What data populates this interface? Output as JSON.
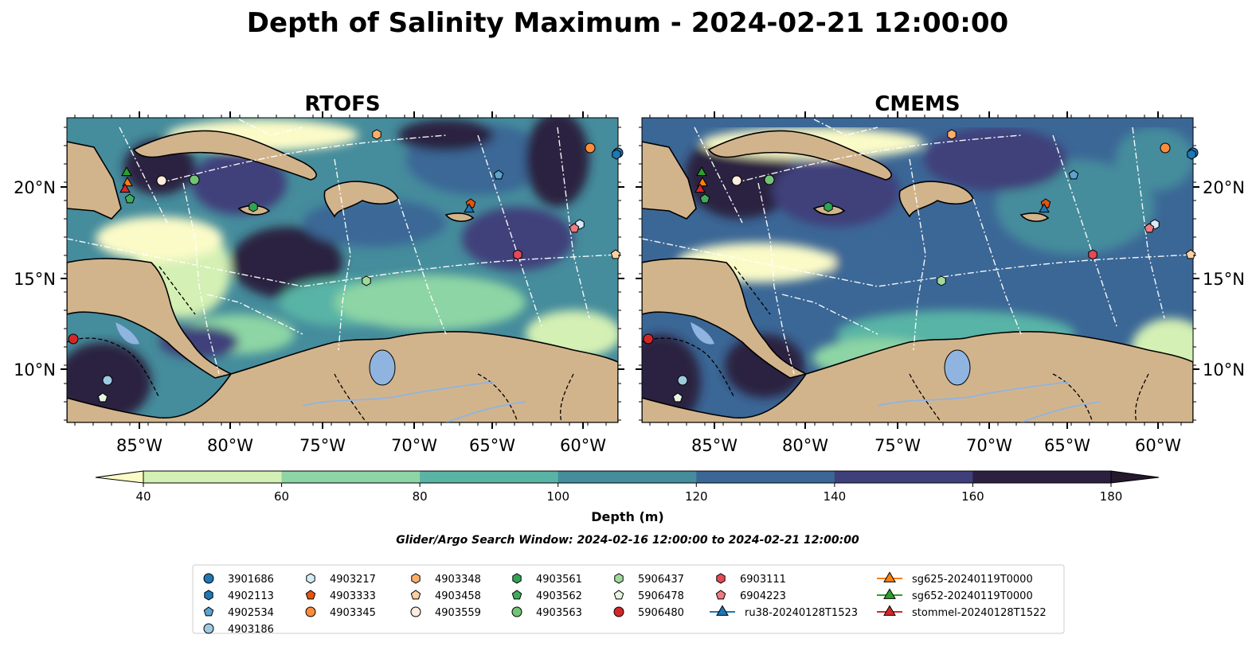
{
  "title": "Depth of Salinity Maximum - 2024-02-21 12:00:00",
  "panels": [
    {
      "id": "rtofs",
      "title": "RTOFS"
    },
    {
      "id": "cmems",
      "title": "CMEMS"
    }
  ],
  "lon_ticks": [
    "85°W",
    "80°W",
    "75°W",
    "70°W",
    "65°W",
    "60°W"
  ],
  "lat_ticks": [
    "20°N",
    "15°N",
    "10°N"
  ],
  "colorbar": {
    "label": "Depth (m)",
    "ticks": [
      "40",
      "60",
      "80",
      "100",
      "120",
      "140",
      "160",
      "180"
    ],
    "colors": [
      "#d4f0b4",
      "#8dd5a4",
      "#59b4a6",
      "#458c9c",
      "#3b6796",
      "#3f3f7a",
      "#2b2040"
    ],
    "under_color": "#fbfbc8",
    "over_color": "#24182c"
  },
  "search_window": "Glider/Argo Search Window: 2024-02-16 12:00:00 to 2024-02-21 12:00:00",
  "colors": {
    "land": "#d2b48c",
    "lake": "#8fb4e0",
    "ocean_deep": "#2d2343"
  },
  "legend": [
    {
      "label": "3901686",
      "marker": "circle",
      "color": "#1f77b4"
    },
    {
      "label": "4902113",
      "marker": "hexagon",
      "color": "#1f77b4"
    },
    {
      "label": "4902534",
      "marker": "pentagon",
      "color": "#5ba3d0"
    },
    {
      "label": "4903186",
      "marker": "circle",
      "color": "#9ecae1"
    },
    {
      "label": "4903217",
      "marker": "hexagon",
      "color": "#d6eaf8"
    },
    {
      "label": "4903333",
      "marker": "pentagon",
      "color": "#e6550d"
    },
    {
      "label": "4903345",
      "marker": "circle",
      "color": "#fd8d3c"
    },
    {
      "label": "4903348",
      "marker": "hexagon",
      "color": "#fdae6b"
    },
    {
      "label": "4903458",
      "marker": "pentagon",
      "color": "#fdd0a2"
    },
    {
      "label": "4903559",
      "marker": "circle",
      "color": "#feedde"
    },
    {
      "label": "4903561",
      "marker": "hexagon",
      "color": "#31a354"
    },
    {
      "label": "4903562",
      "marker": "pentagon",
      "color": "#41ab5d"
    },
    {
      "label": "4903563",
      "marker": "circle",
      "color": "#74c476"
    },
    {
      "label": "5906437",
      "marker": "hexagon",
      "color": "#a1d99b"
    },
    {
      "label": "5906478",
      "marker": "pentagon",
      "color": "#e5f5e0"
    },
    {
      "label": "5906480",
      "marker": "circle",
      "color": "#d62728"
    },
    {
      "label": "6903111",
      "marker": "hexagon",
      "color": "#e34a54"
    },
    {
      "label": "6904223",
      "marker": "pentagon",
      "color": "#f07a80"
    },
    {
      "label": "ru38-20240128T1523",
      "marker": "triangle-line",
      "color": "#1f77b4"
    },
    {
      "label": "sg625-20240119T0000",
      "marker": "triangle-line",
      "color": "#ff7f0e"
    },
    {
      "label": "sg652-20240119T0000",
      "marker": "triangle-line",
      "color": "#2ca02c"
    },
    {
      "label": "stommel-20240128T1522",
      "marker": "triangle-line",
      "color": "#d62728"
    }
  ]
}
